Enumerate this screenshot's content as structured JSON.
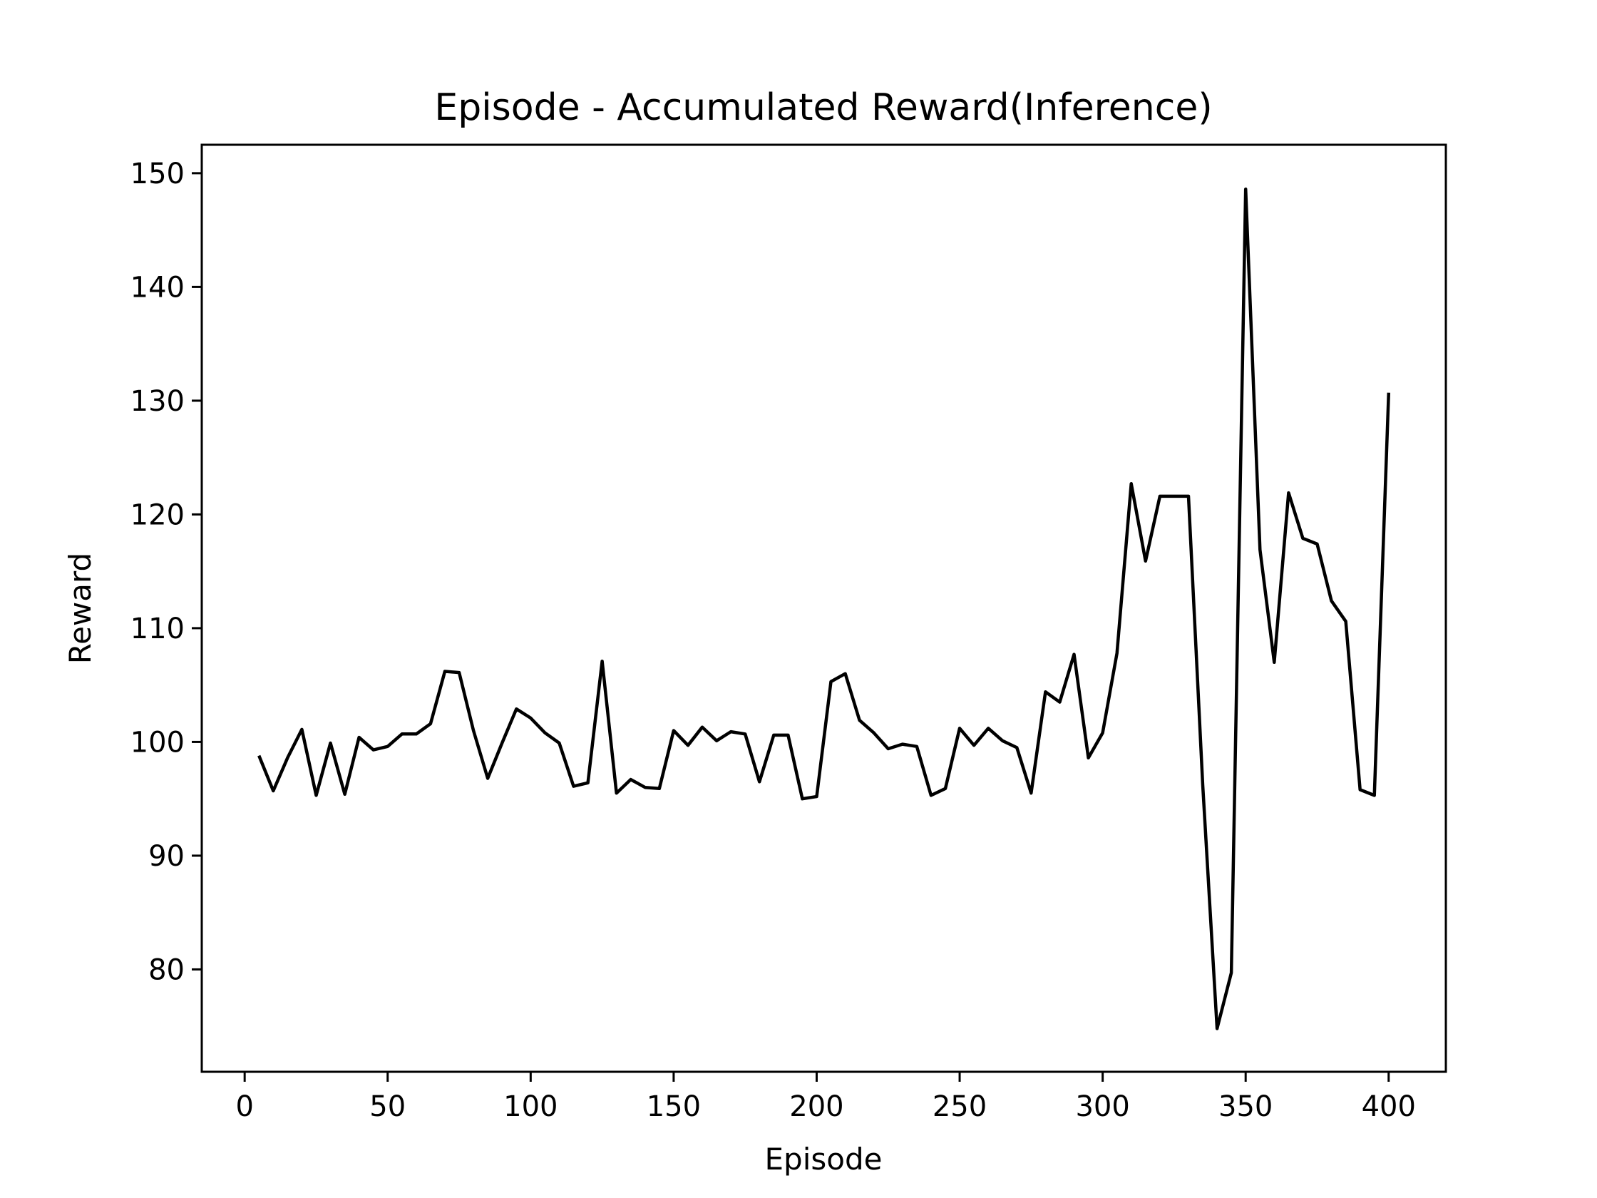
{
  "chart_data": {
    "type": "line",
    "title": "Episode - Accumulated Reward(Inference)",
    "xlabel": "Episode",
    "ylabel": "Reward",
    "xlim": [
      -15,
      420
    ],
    "ylim": [
      71,
      152.5
    ],
    "xticks": [
      0,
      50,
      100,
      150,
      200,
      250,
      300,
      350,
      400
    ],
    "yticks": [
      80,
      90,
      100,
      110,
      120,
      130,
      140,
      150
    ],
    "grid": false,
    "line_color": "#000000",
    "series": [
      {
        "x": [
          5,
          10,
          15,
          20,
          25,
          30,
          35,
          40,
          45,
          50,
          55,
          60,
          65,
          70,
          75,
          80,
          85,
          90,
          95,
          100,
          105,
          110,
          115,
          120,
          125,
          130,
          135,
          140,
          145,
          150,
          155,
          160,
          165,
          170,
          175,
          180,
          185,
          190,
          195,
          200,
          205,
          210,
          215,
          220,
          225,
          230,
          235,
          240,
          245,
          250,
          255,
          260,
          265,
          270,
          275,
          280,
          285,
          290,
          295,
          300,
          305,
          310,
          315,
          320,
          325,
          330,
          335,
          340,
          345,
          350,
          355,
          360,
          365,
          370,
          375,
          380,
          385,
          390,
          395,
          400
        ],
        "values": [
          98.8,
          95.7,
          98.6,
          101.1,
          95.3,
          99.9,
          95.4,
          100.4,
          99.3,
          99.6,
          100.7,
          100.7,
          101.6,
          106.2,
          106.1,
          101.0,
          96.8,
          99.9,
          102.9,
          102.1,
          100.8,
          99.9,
          96.1,
          96.4,
          107.1,
          95.5,
          96.7,
          96.0,
          95.9,
          101.0,
          99.7,
          101.3,
          100.1,
          100.9,
          100.7,
          96.5,
          100.6,
          100.6,
          95.0,
          95.2,
          105.3,
          106.0,
          101.9,
          100.8,
          99.4,
          99.8,
          99.6,
          95.3,
          95.9,
          101.2,
          99.7,
          101.2,
          100.1,
          99.5,
          95.5,
          104.4,
          103.5,
          107.7,
          98.6,
          100.8,
          107.8,
          122.7,
          115.9,
          121.6,
          121.6,
          121.6,
          96.2,
          74.8,
          79.7,
          148.6,
          116.9,
          107.0,
          121.9,
          117.9,
          117.4,
          112.4,
          110.6,
          95.8,
          95.3,
          130.7
        ]
      }
    ]
  }
}
